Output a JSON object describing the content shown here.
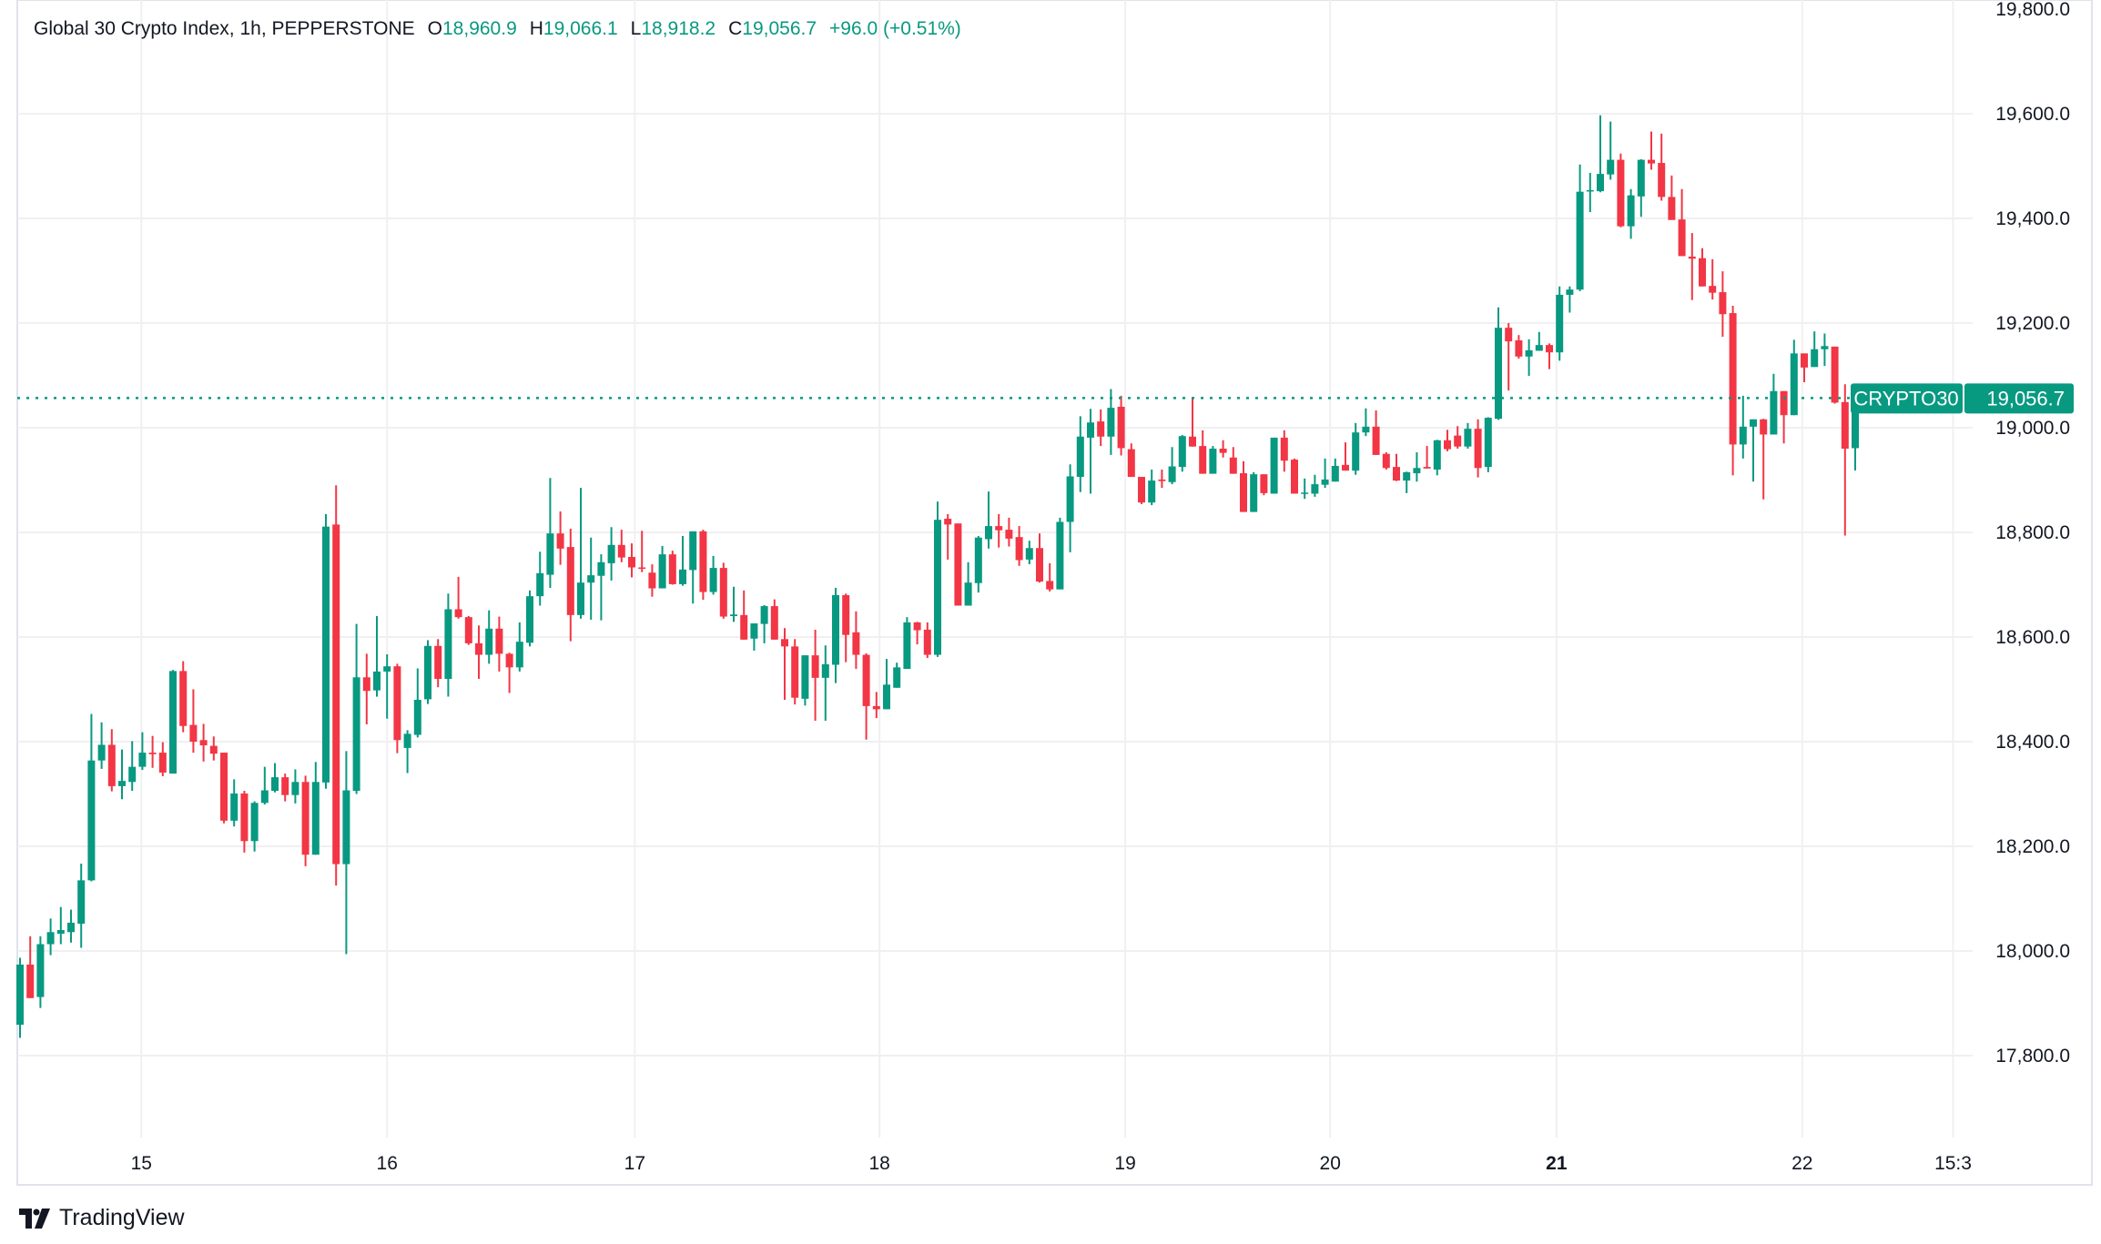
{
  "header": {
    "title": "Global 30 Crypto Index, 1h, PEPPERSTONE",
    "open_label": "O",
    "open": "18,960.9",
    "high_label": "H",
    "high": "19,066.1",
    "low_label": "L",
    "low": "18,918.2",
    "close_label": "C",
    "close": "19,056.7",
    "change": "+96.0 (+0.51%)"
  },
  "price_tag": {
    "symbol": "CRYPTO30",
    "value": "19,056.7"
  },
  "brand": {
    "name": "TradingView"
  },
  "colors": {
    "up": "#089981",
    "down": "#F23645",
    "grid": "#f0f0f3",
    "text": "#131722"
  },
  "chart_data": {
    "type": "candlestick",
    "title": "Global 30 Crypto Index, 1h, PEPPERSTONE",
    "interval": "1h",
    "last_price": 19056.7,
    "ylim": [
      17760,
      19810
    ],
    "grid": true,
    "y_ticks": [
      {
        "value": 19800,
        "label": "19,800.0"
      },
      {
        "value": 19600,
        "label": "19,600.0"
      },
      {
        "value": 19400,
        "label": "19,400.0"
      },
      {
        "value": 19200,
        "label": "19,200.0"
      },
      {
        "value": 19000,
        "label": "19,000.0"
      },
      {
        "value": 18800,
        "label": "18,800.0"
      },
      {
        "value": 18600,
        "label": "18,600.0"
      },
      {
        "value": 18400,
        "label": "18,400.0"
      },
      {
        "value": 18200,
        "label": "18,200.0"
      },
      {
        "value": 18000,
        "label": "18,000.0"
      },
      {
        "value": 17800,
        "label": "17,800.0"
      }
    ],
    "x_ticks": [
      {
        "bar": 11.9,
        "label": "15",
        "bold": false
      },
      {
        "bar": 36.0,
        "label": "16",
        "bold": false
      },
      {
        "bar": 60.3,
        "label": "17",
        "bold": false
      },
      {
        "bar": 84.3,
        "label": "18",
        "bold": false
      },
      {
        "bar": 108.4,
        "label": "19",
        "bold": false
      },
      {
        "bar": 128.5,
        "label": "20",
        "bold": false
      },
      {
        "bar": 150.7,
        "label": "21",
        "bold": true
      },
      {
        "bar": 174.8,
        "label": "22",
        "bold": false
      },
      {
        "bar": 189.6,
        "label": "15:3",
        "bold": false
      }
    ],
    "ohlc": [
      [
        17859,
        17987,
        17834,
        17974
      ],
      [
        17974,
        18028,
        17910,
        17910
      ],
      [
        17912,
        18028,
        17891,
        18013
      ],
      [
        18013,
        18062,
        17992,
        18036
      ],
      [
        18033,
        18084,
        18013,
        18040
      ],
      [
        18036,
        18079,
        18016,
        18054
      ],
      [
        18052,
        18167,
        18006,
        18135
      ],
      [
        18135,
        18453,
        18133,
        18364
      ],
      [
        18364,
        18437,
        18348,
        18394
      ],
      [
        18394,
        18424,
        18305,
        18315
      ],
      [
        18315,
        18385,
        18290,
        18325
      ],
      [
        18323,
        18401,
        18306,
        18352
      ],
      [
        18352,
        18418,
        18346,
        18379
      ],
      [
        18379,
        18411,
        18350,
        18376
      ],
      [
        18379,
        18399,
        18334,
        18341
      ],
      [
        18339,
        18537,
        18339,
        18535
      ],
      [
        18535,
        18554,
        18418,
        18430
      ],
      [
        18432,
        18500,
        18379,
        18400
      ],
      [
        18403,
        18434,
        18362,
        18393
      ],
      [
        18392,
        18410,
        18364,
        18377
      ],
      [
        18379,
        18379,
        18244,
        18249
      ],
      [
        18249,
        18328,
        18238,
        18301
      ],
      [
        18301,
        18306,
        18188,
        18210
      ],
      [
        18210,
        18286,
        18190,
        18283
      ],
      [
        18283,
        18352,
        18280,
        18307
      ],
      [
        18306,
        18359,
        18303,
        18332
      ],
      [
        18332,
        18339,
        18286,
        18298
      ],
      [
        18298,
        18347,
        18282,
        18323
      ],
      [
        18323,
        18335,
        18162,
        18184
      ],
      [
        18184,
        18361,
        18184,
        18323
      ],
      [
        18322,
        18835,
        18310,
        18811
      ],
      [
        18815,
        18890,
        18125,
        18166
      ],
      [
        18166,
        18382,
        17994,
        18307
      ],
      [
        18306,
        18625,
        18300,
        18523
      ],
      [
        18523,
        18568,
        18433,
        18497
      ],
      [
        18498,
        18640,
        18486,
        18534
      ],
      [
        18534,
        18567,
        18444,
        18544
      ],
      [
        18544,
        18549,
        18378,
        18403
      ],
      [
        18388,
        18422,
        18340,
        18415
      ],
      [
        18413,
        18540,
        18408,
        18480
      ],
      [
        18481,
        18594,
        18472,
        18583
      ],
      [
        18583,
        18596,
        18504,
        18520
      ],
      [
        18520,
        18683,
        18486,
        18653
      ],
      [
        18653,
        18715,
        18635,
        18638
      ],
      [
        18638,
        18640,
        18585,
        18588
      ],
      [
        18588,
        18622,
        18520,
        18566
      ],
      [
        18566,
        18651,
        18549,
        18616
      ],
      [
        18616,
        18639,
        18534,
        18568
      ],
      [
        18568,
        18570,
        18493,
        18542
      ],
      [
        18542,
        18628,
        18534,
        18591
      ],
      [
        18589,
        18689,
        18582,
        18678
      ],
      [
        18678,
        18763,
        18660,
        18722
      ],
      [
        18719,
        18904,
        18694,
        18798
      ],
      [
        18798,
        18840,
        18738,
        18769
      ],
      [
        18772,
        18807,
        18592,
        18642
      ],
      [
        18642,
        18885,
        18635,
        18704
      ],
      [
        18704,
        18790,
        18633,
        18718
      ],
      [
        18717,
        18758,
        18632,
        18743
      ],
      [
        18741,
        18810,
        18708,
        18776
      ],
      [
        18776,
        18805,
        18743,
        18752
      ],
      [
        18753,
        18779,
        18714,
        18733
      ],
      [
        18733,
        18803,
        18724,
        18731
      ],
      [
        18723,
        18739,
        18677,
        18693
      ],
      [
        18693,
        18774,
        18693,
        18758
      ],
      [
        18758,
        18765,
        18700,
        18701
      ],
      [
        18701,
        18793,
        18698,
        18729
      ],
      [
        18728,
        18802,
        18664,
        18802
      ],
      [
        18802,
        18805,
        18671,
        18686
      ],
      [
        18686,
        18755,
        18681,
        18732
      ],
      [
        18732,
        18742,
        18635,
        18639
      ],
      [
        18640,
        18696,
        18629,
        18643
      ],
      [
        18642,
        18689,
        18595,
        18595
      ],
      [
        18597,
        18626,
        18574,
        18626
      ],
      [
        18625,
        18661,
        18588,
        18659
      ],
      [
        18659,
        18672,
        18595,
        18595
      ],
      [
        18596,
        18617,
        18480,
        18582
      ],
      [
        18582,
        18596,
        18471,
        18484
      ],
      [
        18482,
        18565,
        18469,
        18565
      ],
      [
        18565,
        18614,
        18440,
        18522
      ],
      [
        18522,
        18584,
        18440,
        18548
      ],
      [
        18547,
        18694,
        18512,
        18680
      ],
      [
        18680,
        18683,
        18552,
        18604
      ],
      [
        18609,
        18649,
        18539,
        18566
      ],
      [
        18566,
        18569,
        18404,
        18468
      ],
      [
        18468,
        18495,
        18445,
        18462
      ],
      [
        18462,
        18558,
        18462,
        18509
      ],
      [
        18503,
        18551,
        18503,
        18542
      ],
      [
        18539,
        18638,
        18539,
        18628
      ],
      [
        18628,
        18629,
        18586,
        18613
      ],
      [
        18614,
        18628,
        18560,
        18566
      ],
      [
        18566,
        18859,
        18562,
        18824
      ],
      [
        18826,
        18835,
        18748,
        18815
      ],
      [
        18817,
        18817,
        18660,
        18660
      ],
      [
        18660,
        18743,
        18660,
        18704
      ],
      [
        18703,
        18793,
        18685,
        18790
      ],
      [
        18787,
        18878,
        18769,
        18812
      ],
      [
        18812,
        18835,
        18771,
        18804
      ],
      [
        18805,
        18828,
        18773,
        18788
      ],
      [
        18791,
        18812,
        18736,
        18747
      ],
      [
        18748,
        18784,
        18739,
        18770
      ],
      [
        18770,
        18798,
        18704,
        18706
      ],
      [
        18707,
        18741,
        18687,
        18691
      ],
      [
        18691,
        18828,
        18691,
        18820
      ],
      [
        18820,
        18930,
        18762,
        18907
      ],
      [
        18906,
        19022,
        18877,
        18983
      ],
      [
        18981,
        19036,
        18874,
        19010
      ],
      [
        19012,
        19035,
        18965,
        18983
      ],
      [
        18983,
        19074,
        18948,
        19038
      ],
      [
        19040,
        19061,
        18947,
        18961
      ],
      [
        18959,
        18970,
        18906,
        18906
      ],
      [
        18906,
        18906,
        18854,
        18857
      ],
      [
        18857,
        18920,
        18852,
        18899
      ],
      [
        18901,
        18920,
        18885,
        18898
      ],
      [
        18896,
        18963,
        18892,
        18926
      ],
      [
        18925,
        18986,
        18916,
        18984
      ],
      [
        18983,
        19056,
        18964,
        18964
      ],
      [
        18965,
        18995,
        18912,
        18912
      ],
      [
        18912,
        18965,
        18912,
        18960
      ],
      [
        18960,
        18976,
        18943,
        18952
      ],
      [
        18943,
        18963,
        18912,
        18912
      ],
      [
        18913,
        18936,
        18839,
        18839
      ],
      [
        18839,
        18915,
        18839,
        18911
      ],
      [
        18911,
        18911,
        18871,
        18875
      ],
      [
        18874,
        18981,
        18874,
        18981
      ],
      [
        18981,
        18995,
        18916,
        18937
      ],
      [
        18939,
        18941,
        18874,
        18874
      ],
      [
        18875,
        18903,
        18864,
        18876
      ],
      [
        18874,
        18910,
        18868,
        18892
      ],
      [
        18891,
        18941,
        18885,
        18901
      ],
      [
        18897,
        18941,
        18897,
        18927
      ],
      [
        18929,
        18972,
        18918,
        18918
      ],
      [
        18918,
        19009,
        18910,
        18991
      ],
      [
        18991,
        19037,
        18984,
        19002
      ],
      [
        19002,
        19033,
        18948,
        18948
      ],
      [
        18950,
        18953,
        18920,
        18923
      ],
      [
        18925,
        18950,
        18898,
        18899
      ],
      [
        18899,
        18916,
        18875,
        18915
      ],
      [
        18913,
        18953,
        18897,
        18923
      ],
      [
        18925,
        18965,
        18922,
        18922
      ],
      [
        18920,
        18977,
        18909,
        18976
      ],
      [
        18976,
        18996,
        18955,
        18959
      ],
      [
        18985,
        19003,
        18960,
        18964
      ],
      [
        18964,
        19009,
        18960,
        18998
      ],
      [
        18998,
        19016,
        18905,
        18923
      ],
      [
        18925,
        19020,
        18915,
        19019
      ],
      [
        19017,
        19230,
        19015,
        19191
      ],
      [
        19191,
        19200,
        19071,
        19165
      ],
      [
        19167,
        19177,
        19132,
        19136
      ],
      [
        19136,
        19169,
        19099,
        19148
      ],
      [
        19147,
        19183,
        19147,
        19158
      ],
      [
        19158,
        19161,
        19112,
        19144
      ],
      [
        19144,
        19270,
        19128,
        19254
      ],
      [
        19254,
        19270,
        19220,
        19264
      ],
      [
        19264,
        19503,
        19261,
        19451
      ],
      [
        19452,
        19487,
        19412,
        19454
      ],
      [
        19452,
        19597,
        19450,
        19485
      ],
      [
        19484,
        19585,
        19474,
        19512
      ],
      [
        19512,
        19524,
        19383,
        19385
      ],
      [
        19385,
        19456,
        19361,
        19444
      ],
      [
        19442,
        19513,
        19403,
        19512
      ],
      [
        19512,
        19566,
        19493,
        19505
      ],
      [
        19506,
        19562,
        19434,
        19441
      ],
      [
        19441,
        19482,
        19397,
        19397
      ],
      [
        19398,
        19456,
        19328,
        19328
      ],
      [
        19327,
        19372,
        19244,
        19323
      ],
      [
        19324,
        19343,
        19270,
        19270
      ],
      [
        19271,
        19322,
        19245,
        19258
      ],
      [
        19259,
        19299,
        19174,
        19217
      ],
      [
        19219,
        19233,
        18909,
        18968
      ],
      [
        18968,
        19061,
        18941,
        19002
      ],
      [
        19002,
        19016,
        18897,
        19016
      ],
      [
        19016,
        19017,
        18863,
        18987
      ],
      [
        18987,
        19103,
        18987,
        19070
      ],
      [
        19070,
        19070,
        18970,
        19024
      ],
      [
        19024,
        19168,
        19024,
        19142
      ],
      [
        19142,
        19142,
        19087,
        19115
      ],
      [
        19116,
        19184,
        19116,
        19150
      ],
      [
        19150,
        19180,
        19118,
        19156
      ],
      [
        19155,
        19155,
        19046,
        19048
      ],
      [
        19049,
        19083,
        18794,
        18960
      ],
      [
        18960.9,
        19066.1,
        18918.2,
        19056.7
      ]
    ]
  }
}
